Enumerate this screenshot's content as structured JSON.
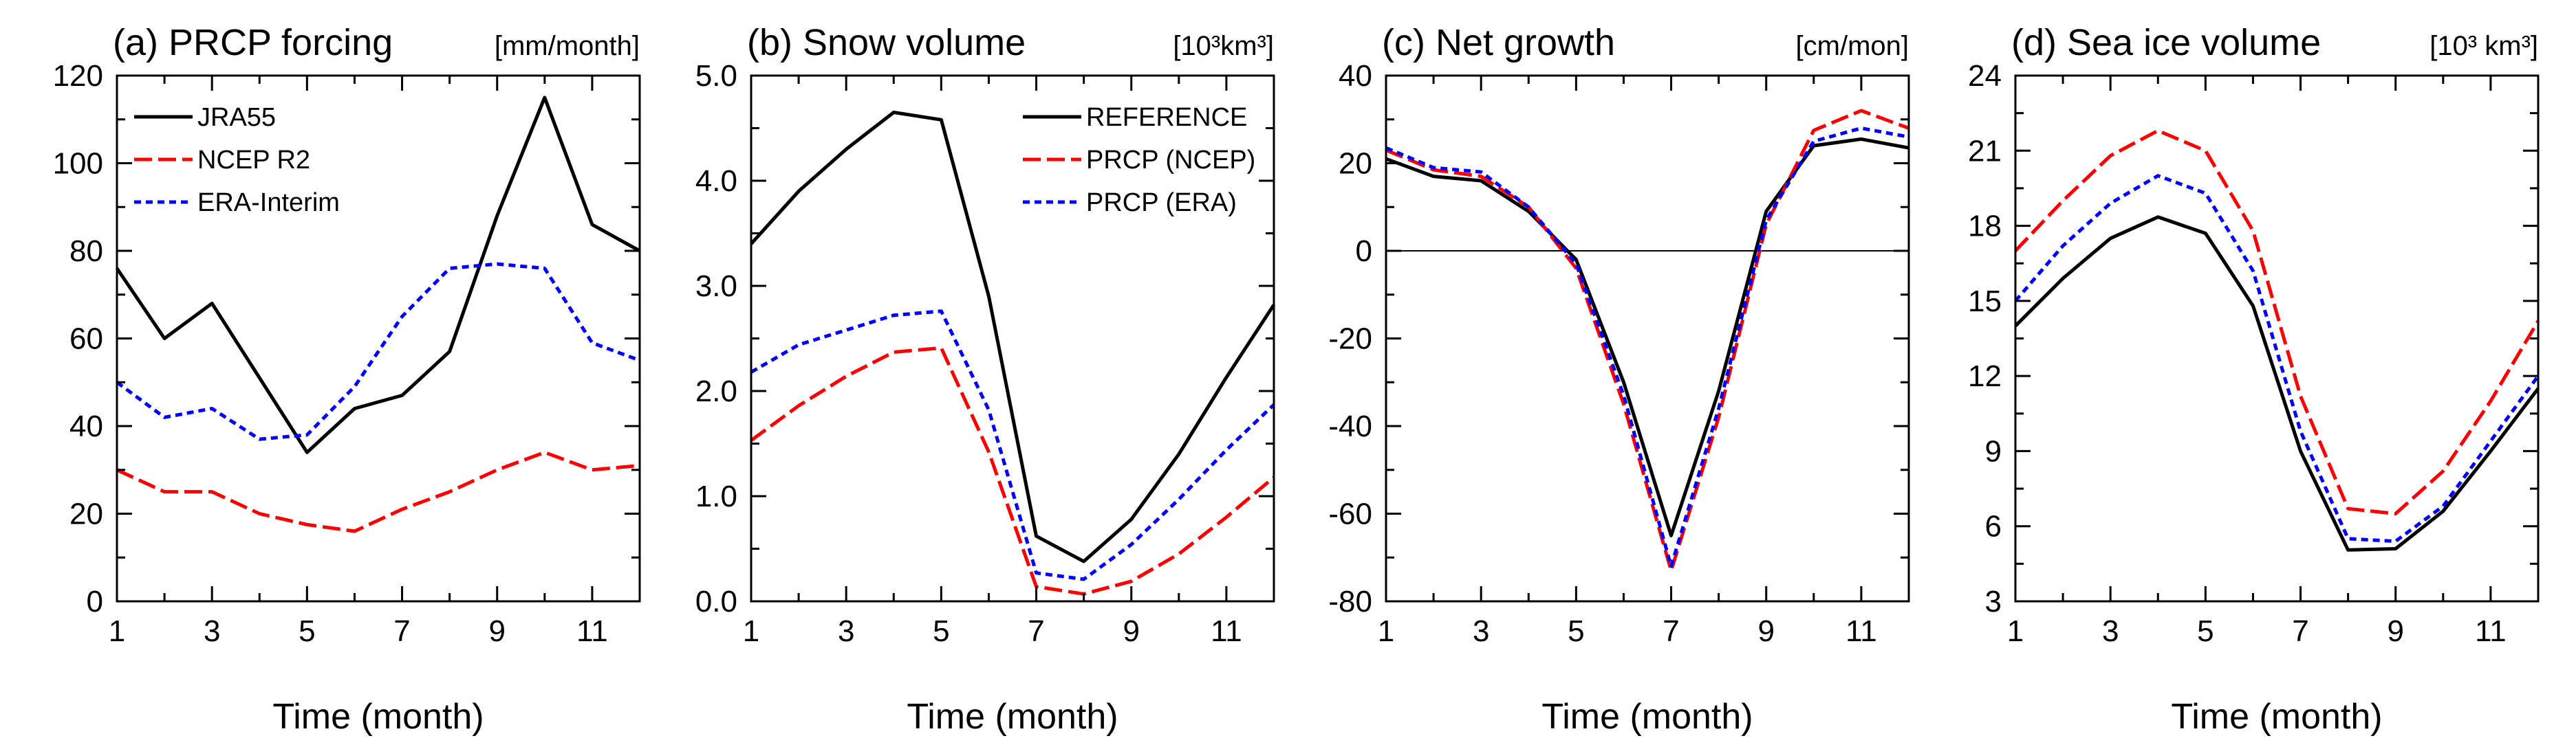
{
  "figure": {
    "xlabel": "Time (month)"
  },
  "chart_data": [
    {
      "type": "line",
      "title": "(a) PRCP forcing",
      "unit": "[mm/month]",
      "xlabel": "Time (month)",
      "ylabel": "",
      "x": [
        1,
        2,
        3,
        4,
        5,
        6,
        7,
        8,
        9,
        10,
        11,
        12
      ],
      "xticks": [
        1,
        3,
        5,
        7,
        9,
        11
      ],
      "xlim": [
        1,
        12
      ],
      "ylim": [
        0,
        120
      ],
      "yticks": [
        0,
        20,
        40,
        60,
        80,
        100,
        120
      ],
      "ytick_labels": [
        "0",
        "20",
        "40",
        "60",
        "80",
        "100",
        "120"
      ],
      "ytick_side": "left",
      "zero_line": false,
      "legend_position": "top-left",
      "series": [
        {
          "name": "JRA55",
          "color": "#000000",
          "dash": "solid",
          "values": [
            76,
            60,
            68,
            51,
            34,
            44,
            47,
            57,
            88,
            115,
            86,
            80
          ]
        },
        {
          "name": "NCEP R2",
          "color": "#ff0000",
          "dash": "longdash",
          "values": [
            30,
            25,
            25,
            20,
            17.5,
            16,
            21,
            25,
            30,
            34,
            30,
            31
          ]
        },
        {
          "name": "ERA-Interim",
          "color": "#0000ff",
          "dash": "short",
          "values": [
            50,
            42,
            44,
            37,
            38,
            49,
            65,
            76,
            77,
            76,
            59,
            55
          ]
        }
      ]
    },
    {
      "type": "line",
      "title": "(b) Snow volume",
      "unit": "[10³km³]",
      "xlabel": "Time (month)",
      "ylabel": "",
      "x": [
        1,
        2,
        3,
        4,
        5,
        6,
        7,
        8,
        9,
        10,
        11,
        12
      ],
      "xticks": [
        1,
        3,
        5,
        7,
        9,
        11
      ],
      "xlim": [
        1,
        12
      ],
      "ylim": [
        0,
        5
      ],
      "yticks": [
        0,
        1,
        2,
        3,
        4,
        5
      ],
      "ytick_labels": [
        "0.0",
        "1.0",
        "2.0",
        "3.0",
        "4.0",
        "5.0"
      ],
      "ytick_side": "left",
      "zero_line": false,
      "legend_position": "top-right",
      "series": [
        {
          "name": "REFERENCE",
          "color": "#000000",
          "dash": "solid",
          "values": [
            3.4,
            3.9,
            4.3,
            4.65,
            4.58,
            2.9,
            0.62,
            0.38,
            0.78,
            1.4,
            2.13,
            2.82
          ]
        },
        {
          "name": "PRCP (NCEP)",
          "color": "#ff0000",
          "dash": "longdash",
          "values": [
            1.53,
            1.86,
            2.14,
            2.37,
            2.41,
            1.42,
            0.14,
            0.07,
            0.19,
            0.45,
            0.8,
            1.18
          ]
        },
        {
          "name": "PRCP (ERA)",
          "color": "#0000ff",
          "dash": "short",
          "values": [
            2.18,
            2.44,
            2.58,
            2.72,
            2.76,
            1.82,
            0.27,
            0.21,
            0.54,
            0.97,
            1.44,
            1.87
          ]
        }
      ]
    },
    {
      "type": "line",
      "title": "(c) Net growth",
      "unit": "[cm/mon]",
      "xlabel": "Time (month)",
      "ylabel": "",
      "x": [
        1,
        2,
        3,
        4,
        5,
        6,
        7,
        8,
        9,
        10,
        11,
        12
      ],
      "xticks": [
        1,
        3,
        5,
        7,
        9,
        11
      ],
      "xlim": [
        1,
        12
      ],
      "ylim": [
        -80,
        40
      ],
      "yticks": [
        -80,
        -60,
        -40,
        -20,
        0,
        20,
        40
      ],
      "ytick_labels": [
        "-80",
        "-60",
        "-40",
        "-20",
        "0",
        "20",
        "40"
      ],
      "ytick_side": "left",
      "zero_line": true,
      "series": [
        {
          "name": "REFERENCE",
          "color": "#000000",
          "dash": "solid",
          "values": [
            21,
            17,
            16,
            9,
            -2,
            -30,
            -65,
            -32,
            9,
            24,
            25.5,
            23.5
          ]
        },
        {
          "name": "PRCP (NCEP)",
          "color": "#ff0000",
          "dash": "longdash",
          "values": [
            23,
            18.5,
            17,
            10,
            -4,
            -35,
            -73,
            -38,
            6,
            27.5,
            32,
            28
          ]
        },
        {
          "name": "PRCP (ERA)",
          "color": "#0000ff",
          "dash": "short",
          "values": [
            23.5,
            19,
            18,
            10,
            -3,
            -33,
            -72,
            -36,
            7,
            25,
            28,
            26
          ]
        }
      ]
    },
    {
      "type": "line",
      "title": "(d) Sea ice volume",
      "unit": "[10³ km³]",
      "xlabel": "Time (month)",
      "ylabel": "",
      "x": [
        1,
        2,
        3,
        4,
        5,
        6,
        7,
        8,
        9,
        10,
        11,
        12
      ],
      "xticks": [
        1,
        3,
        5,
        7,
        9,
        11
      ],
      "xlim": [
        1,
        12
      ],
      "ylim": [
        3,
        24
      ],
      "yticks": [
        3,
        6,
        9,
        12,
        15,
        18,
        21,
        24
      ],
      "ytick_labels": [
        "3",
        "6",
        "9",
        "12",
        "15",
        "18",
        "21",
        "24"
      ],
      "ytick_side": "left",
      "zero_line": false,
      "series": [
        {
          "name": "REFERENCE",
          "color": "#000000",
          "dash": "solid",
          "values": [
            14,
            15.9,
            17.5,
            18.35,
            17.7,
            14.8,
            9,
            5.05,
            5.1,
            6.6,
            9,
            11.5
          ]
        },
        {
          "name": "PRCP (NCEP)",
          "color": "#ff0000",
          "dash": "longdash",
          "values": [
            17,
            19,
            20.8,
            21.8,
            21,
            17.8,
            11.2,
            6.7,
            6.5,
            8.2,
            11,
            14.2
          ]
        },
        {
          "name": "PRCP (ERA)",
          "color": "#0000ff",
          "dash": "short",
          "values": [
            15,
            17.2,
            18.9,
            20,
            19.3,
            16.2,
            9.8,
            5.5,
            5.4,
            6.8,
            9.4,
            12
          ]
        }
      ]
    }
  ]
}
